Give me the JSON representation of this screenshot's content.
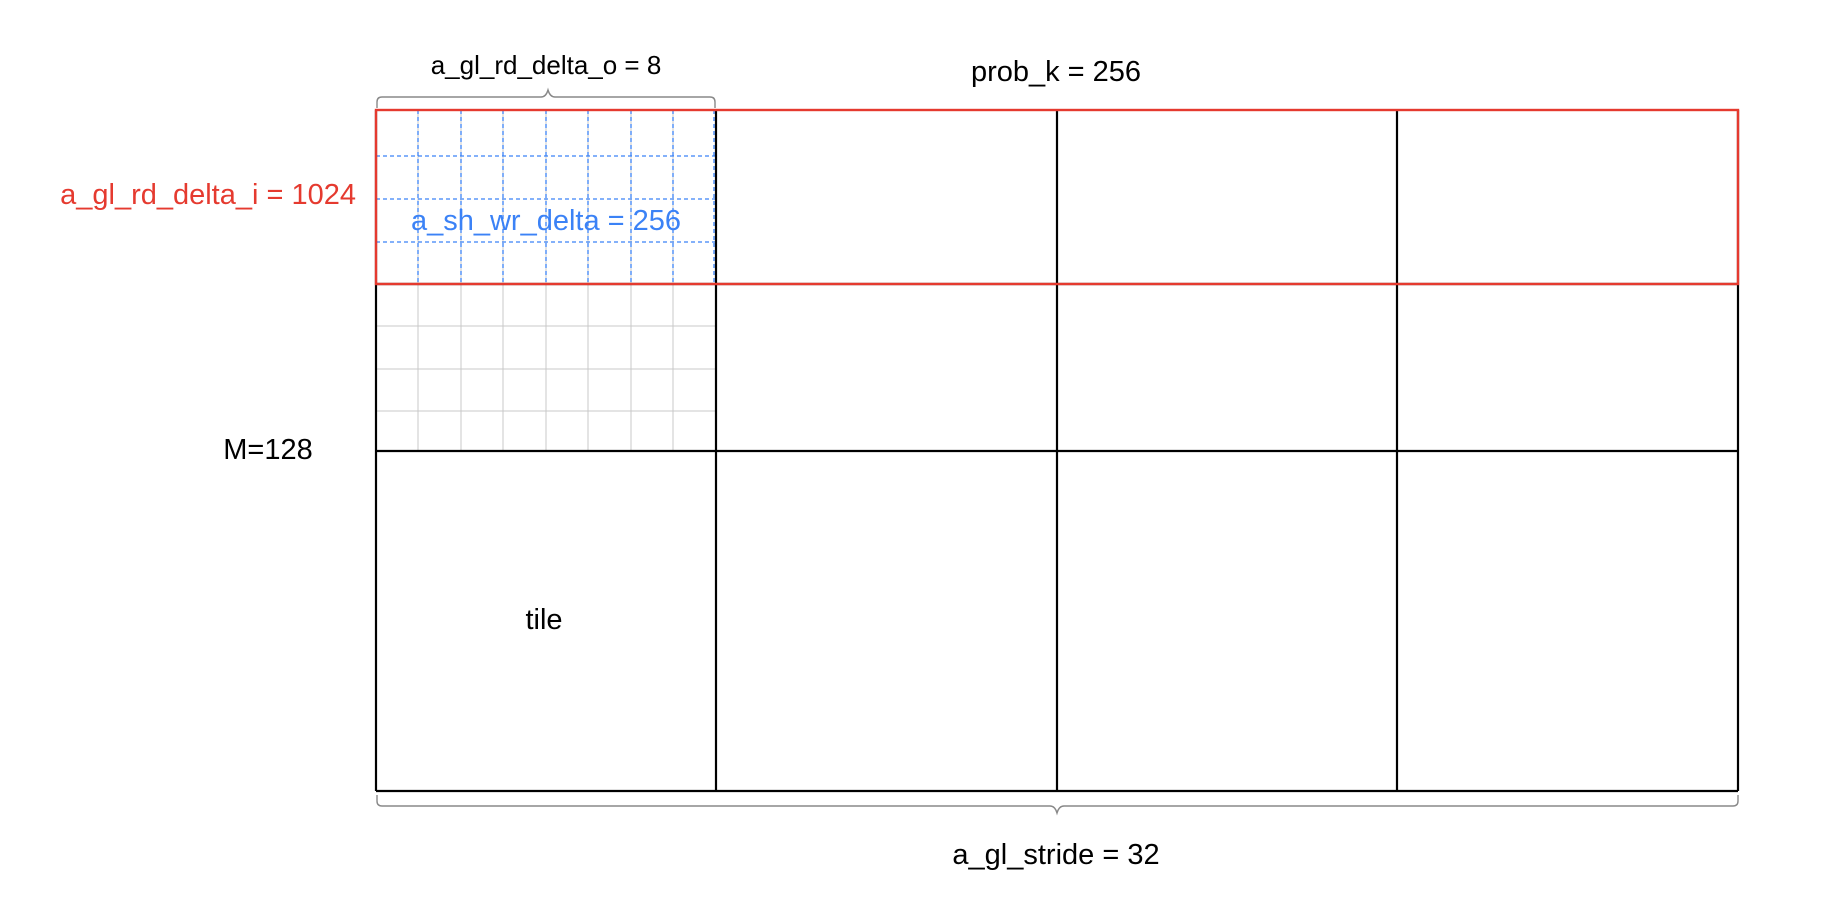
{
  "labels": {
    "a_gl_rd_delta_o": "a_gl_rd_delta_o = 8",
    "prob_k": "prob_k = 256",
    "a_gl_rd_delta_i": "a_gl_rd_delta_i = 1024",
    "a_sh_wr_delta": "a_sh_wr_delta = 256",
    "m": "M=128",
    "tile": "tile",
    "a_gl_stride": "a_gl_stride = 32"
  },
  "grid": {
    "tile_columns": 4,
    "tile_rows": 3,
    "subgrid_columns": 8,
    "subgrid_rows": 8
  },
  "colors": {
    "tile_grid": "#000000",
    "highlight_row": "#e53a2f",
    "shared_write": "#3b82f6",
    "fine_grid": "#c8c8c8",
    "brace": "#888888",
    "text": "#000000"
  }
}
